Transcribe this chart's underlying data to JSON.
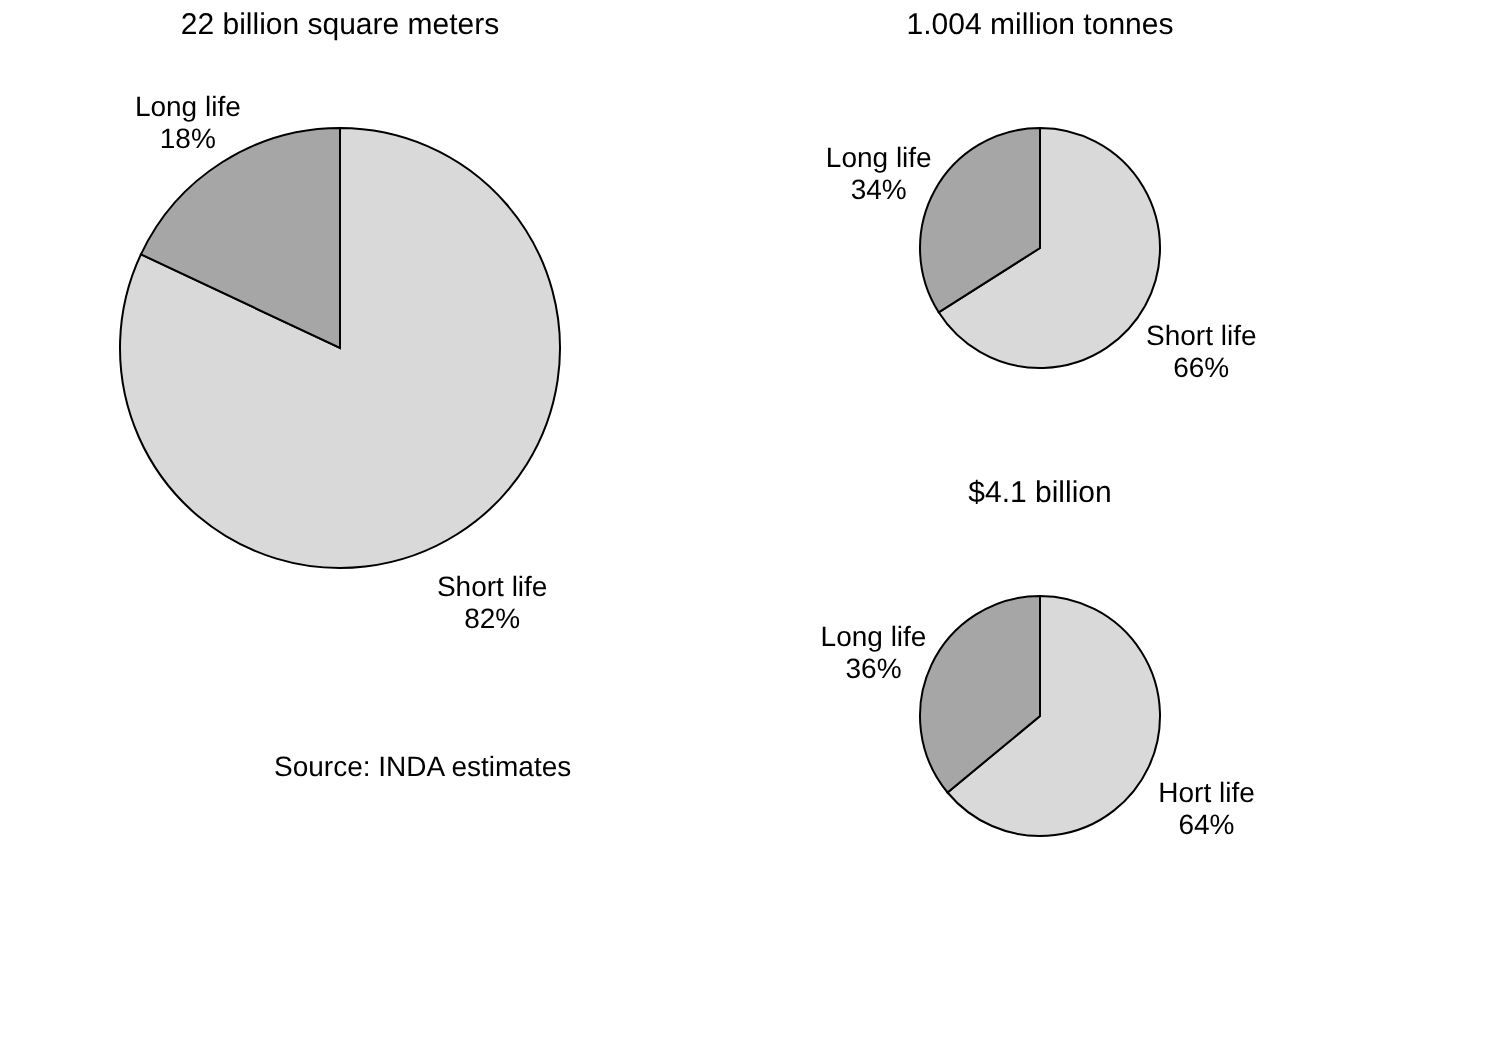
{
  "chart_data": [
    {
      "type": "pie",
      "title": "22 billion square meters",
      "categories": [
        "Short life",
        "Long life"
      ],
      "values": [
        82,
        18
      ],
      "colors": [
        "#d9d9d9",
        "#a6a6a6"
      ],
      "value_labels": [
        "82%",
        "18%"
      ],
      "legend": false,
      "annotations": [
        "Source: INDA estimates"
      ]
    },
    {
      "type": "pie",
      "title": "1.004 million tonnes",
      "categories": [
        "Short life",
        "Long life"
      ],
      "values": [
        66,
        34
      ],
      "colors": [
        "#d9d9d9",
        "#a6a6a6"
      ],
      "value_labels": [
        "66%",
        "34%"
      ],
      "legend": false
    },
    {
      "type": "pie",
      "title": "$4.1 billion",
      "categories": [
        "Hort life",
        "Long life"
      ],
      "values": [
        64,
        36
      ],
      "colors": [
        "#d9d9d9",
        "#a6a6a6"
      ],
      "value_labels": [
        "64%",
        "36%"
      ],
      "legend": false
    }
  ]
}
